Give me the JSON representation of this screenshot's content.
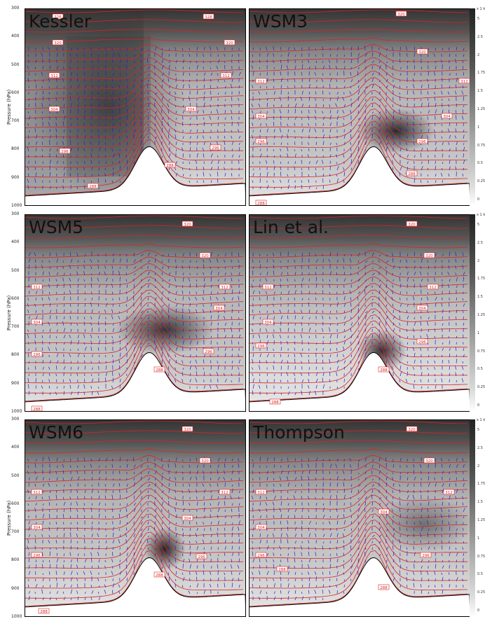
{
  "y_axis": {
    "label": "Pressure (hPa)",
    "ticks": [
      "300",
      "400",
      "500",
      "600",
      "700",
      "800",
      "900",
      "1000"
    ]
  },
  "colorbar": {
    "top_label": "x 1 k",
    "ticks": [
      "5",
      "2.5",
      "2",
      "1.75",
      "1.5",
      "1.25",
      "1",
      "0.75",
      "0.5",
      "0.25",
      "0"
    ]
  },
  "chart_data": [
    {
      "type": "heatmap",
      "title": "Kessler",
      "isentrope_labels": [
        "326",
        "328",
        "320",
        "320",
        "312",
        "312",
        "304",
        "304",
        "296",
        "296",
        "288",
        "288"
      ],
      "ylim": [
        1000,
        300
      ]
    },
    {
      "type": "heatmap",
      "title": "WSM3",
      "isentrope_labels": [
        "320",
        "320",
        "312",
        "312",
        "304",
        "304",
        "296",
        "296",
        "288",
        "288"
      ],
      "ylim": [
        1000,
        300
      ]
    },
    {
      "type": "heatmap",
      "title": "WSM5",
      "isentrope_labels": [
        "320",
        "320",
        "312",
        "312",
        "304",
        "304",
        "296",
        "296",
        "288",
        "288"
      ],
      "ylim": [
        1000,
        300
      ]
    },
    {
      "type": "heatmap",
      "title": "Lin et al.",
      "isentrope_labels": [
        "320",
        "320",
        "312",
        "312",
        "304",
        "304",
        "296",
        "296",
        "288",
        "288"
      ],
      "ylim": [
        1000,
        300
      ]
    },
    {
      "type": "heatmap",
      "title": "WSM6",
      "isentrope_labels": [
        "320",
        "320",
        "312",
        "312",
        "304",
        "304",
        "296",
        "296",
        "288",
        "288"
      ],
      "ylim": [
        1000,
        300
      ]
    },
    {
      "type": "heatmap",
      "title": "Thompson",
      "isentrope_labels": [
        "320",
        "320",
        "312",
        "312",
        "304",
        "304",
        "296",
        "296",
        "288",
        "288"
      ],
      "ylim": [
        1000,
        300
      ]
    }
  ]
}
